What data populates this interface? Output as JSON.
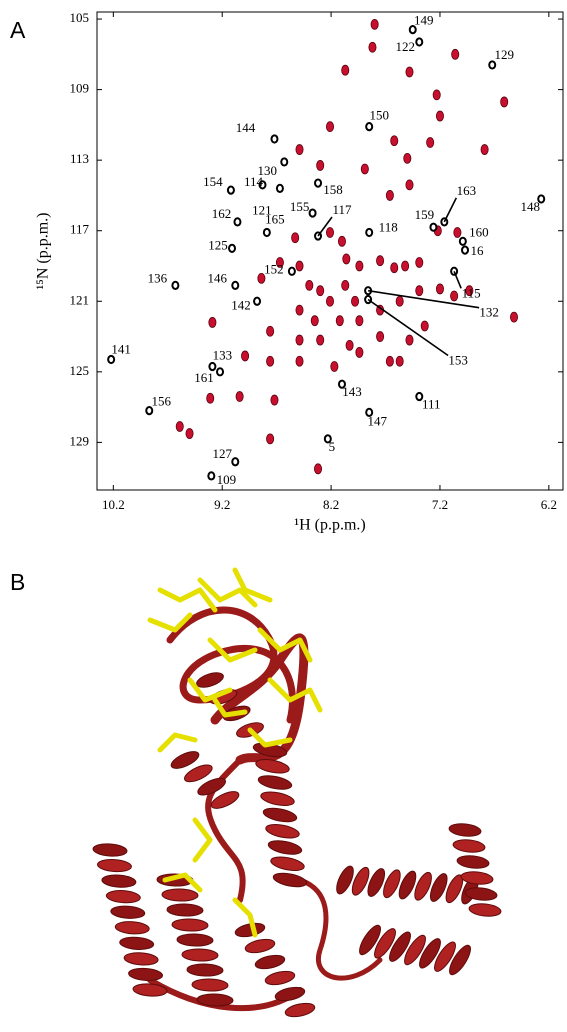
{
  "chart_data": {
    "type": "scatter",
    "panel": "A",
    "xlabel": "¹H (p.p.m.)",
    "ylabel": "¹⁵N (p.p.m.)",
    "xlim": [
      10.35,
      6.07
    ],
    "ylim": [
      131.7,
      104.6
    ],
    "xticks": [
      10.2,
      9.2,
      8.2,
      7.2,
      6.2
    ],
    "yticks": [
      105,
      109,
      113,
      117,
      121,
      125,
      129
    ],
    "series": [
      {
        "color": "#000000",
        "labels": [
          "149",
          "122",
          "129",
          "150",
          "144",
          "130",
          "114",
          "154",
          "158",
          "163",
          "148",
          "162",
          "121",
          "155",
          "117",
          "165",
          "118",
          "159",
          "160",
          "16",
          "125",
          "146",
          "136",
          "152",
          "142",
          "115",
          "132",
          "153",
          "141",
          "133",
          "161",
          "143",
          "111",
          "156",
          "147",
          "5",
          "127",
          "109"
        ],
        "x": [
          7.45,
          7.39,
          6.72,
          7.85,
          8.72,
          8.63,
          8.83,
          9.12,
          8.32,
          7.16,
          6.27,
          9.06,
          8.67,
          8.37,
          8.32,
          8.79,
          7.85,
          7.26,
          6.99,
          6.97,
          9.11,
          9.08,
          9.63,
          8.56,
          8.88,
          7.07,
          7.86,
          7.86,
          10.22,
          9.29,
          9.22,
          8.1,
          7.39,
          9.87,
          7.85,
          8.23,
          9.08,
          9.3
        ],
        "y": [
          105.6,
          106.3,
          107.6,
          111.1,
          111.8,
          113.1,
          114.4,
          114.7,
          114.3,
          116.5,
          115.2,
          116.5,
          114.6,
          116.0,
          117.3,
          117.1,
          117.1,
          116.8,
          117.6,
          118.1,
          118.0,
          120.1,
          120.1,
          119.3,
          121.0,
          119.3,
          120.4,
          120.9,
          124.3,
          124.7,
          125.0,
          125.7,
          126.4,
          127.2,
          127.3,
          128.8,
          130.1,
          130.9
        ]
      },
      {
        "color": "#c8102e",
        "x": [
          7.8,
          8.07,
          7.82,
          7.48,
          7.06,
          7.23,
          7.2,
          6.61,
          8.21,
          7.62,
          7.5,
          7.29,
          8.49,
          8.3,
          7.89,
          7.66,
          7.48,
          6.79,
          7.04,
          7.22,
          8.53,
          8.21,
          8.1,
          8.06,
          7.94,
          7.75,
          7.62,
          7.52,
          7.39,
          8.49,
          8.4,
          8.3,
          8.21,
          8.07,
          7.98,
          8.84,
          8.67,
          8.49,
          8.35,
          8.12,
          7.94,
          7.75,
          7.57,
          7.39,
          7.2,
          7.07,
          6.93,
          6.52,
          8.76,
          8.49,
          8.3,
          8.03,
          7.75,
          7.48,
          7.66,
          9.29,
          8.99,
          8.76,
          8.49,
          8.17,
          7.94,
          9.04,
          8.72,
          9.31,
          9.59,
          9.5,
          8.76,
          8.32,
          7.57,
          7.34
        ],
        "y": [
          105.3,
          107.9,
          106.6,
          108.0,
          107.0,
          109.3,
          110.5,
          109.7,
          111.1,
          111.9,
          112.9,
          112.0,
          112.4,
          113.3,
          113.5,
          115.0,
          114.4,
          112.4,
          117.1,
          117.0,
          117.4,
          117.1,
          117.6,
          118.6,
          119.0,
          118.7,
          119.1,
          119.0,
          118.8,
          119.0,
          120.1,
          120.4,
          121.0,
          120.1,
          121.0,
          119.7,
          118.8,
          121.5,
          122.1,
          122.1,
          122.1,
          121.5,
          121.0,
          120.4,
          120.3,
          120.7,
          120.4,
          121.9,
          122.7,
          123.2,
          123.2,
          123.5,
          123.0,
          123.2,
          124.4,
          122.2,
          124.1,
          124.4,
          124.4,
          124.7,
          123.9,
          126.4,
          126.6,
          126.5,
          128.1,
          128.5,
          128.8,
          130.5,
          124.4,
          122.4
        ]
      }
    ]
  },
  "panel_b": {
    "label": "B"
  }
}
